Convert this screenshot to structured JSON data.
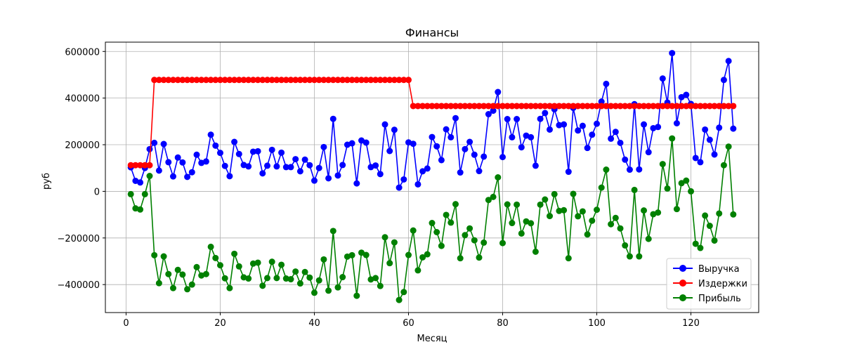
{
  "chart_data": {
    "type": "line",
    "title": "Финансы",
    "xlabel": "Месяц",
    "ylabel": "руб",
    "xlim": [
      -4.4,
      134.4
    ],
    "ylim": [
      -520000,
      640000
    ],
    "xticks": [
      0,
      20,
      40,
      60,
      80,
      100,
      120
    ],
    "yticks": [
      -400000,
      -200000,
      0,
      200000,
      400000,
      600000
    ],
    "grid": true,
    "legend_position": "lower-right",
    "x": [
      1,
      2,
      3,
      4,
      5,
      6,
      7,
      8,
      9,
      10,
      11,
      12,
      13,
      14,
      15,
      16,
      17,
      18,
      19,
      20,
      21,
      22,
      23,
      24,
      25,
      26,
      27,
      28,
      29,
      30,
      31,
      32,
      33,
      34,
      35,
      36,
      37,
      38,
      39,
      40,
      41,
      42,
      43,
      44,
      45,
      46,
      47,
      48,
      49,
      50,
      51,
      52,
      53,
      54,
      55,
      56,
      57,
      58,
      59,
      60,
      61,
      62,
      63,
      64,
      65,
      66,
      67,
      68,
      69,
      70,
      71,
      72,
      73,
      74,
      75,
      76,
      77,
      78,
      79,
      80,
      81,
      82,
      83,
      84,
      85,
      86,
      87,
      88,
      89,
      90,
      91,
      92,
      93,
      94,
      95,
      96,
      97,
      98,
      99,
      100,
      101,
      102,
      103,
      104,
      105,
      106,
      107,
      108,
      109,
      110,
      111,
      112,
      113,
      114,
      115,
      116,
      117,
      118,
      119,
      120,
      121,
      122,
      123,
      124,
      125,
      126,
      127,
      128,
      129
    ],
    "series": [
      {
        "name": "Выручка",
        "color": "#0000ff",
        "values": [
          103000,
          45000,
          38000,
          100000,
          181000,
          208000,
          89000,
          203000,
          125000,
          64000,
          145000,
          124000,
          62000,
          82000,
          157000,
          122000,
          128000,
          243000,
          196000,
          165000,
          109000,
          65000,
          212000,
          160000,
          113000,
          107000,
          170000,
          172000,
          77000,
          110000,
          178000,
          107000,
          166000,
          104000,
          104000,
          138000,
          86000,
          136000,
          112000,
          46000,
          100000,
          190000,
          56000,
          311000,
          68000,
          113000,
          200000,
          206000,
          34000,
          218000,
          209000,
          104000,
          111000,
          74000,
          287000,
          173000,
          264000,
          16000,
          51000,
          210000,
          204000,
          30000,
          86000,
          98000,
          233000,
          193000,
          134000,
          266000,
          232000,
          314000,
          81000,
          181000,
          212000,
          157000,
          87000,
          149000,
          331000,
          346000,
          426000,
          147000,
          310000,
          232000,
          310000,
          189000,
          239000,
          232000,
          110000,
          311000,
          336000,
          265000,
          352000,
          284000,
          287000,
          84000,
          358000,
          261000,
          281000,
          186000,
          243000,
          290000,
          385000,
          461000,
          226000,
          255000,
          208000,
          136000,
          93000,
          374000,
          94000,
          287000,
          168000,
          271000,
          276000,
          484000,
          381000,
          593000,
          292000,
          404000,
          414000,
          375000,
          143000,
          125000,
          265000,
          221000,
          158000,
          273000,
          478000,
          559000,
          269000
        ]
      },
      {
        "name": "Издержки",
        "color": "#ff0000",
        "values": [
          112000,
          112000,
          112000,
          112000,
          112000,
          478000,
          478000,
          478000,
          478000,
          478000,
          478000,
          478000,
          478000,
          478000,
          478000,
          478000,
          478000,
          478000,
          478000,
          478000,
          478000,
          478000,
          478000,
          478000,
          478000,
          478000,
          478000,
          478000,
          478000,
          478000,
          478000,
          478000,
          478000,
          478000,
          478000,
          478000,
          478000,
          478000,
          478000,
          478000,
          478000,
          478000,
          478000,
          478000,
          478000,
          478000,
          478000,
          478000,
          478000,
          478000,
          478000,
          478000,
          478000,
          478000,
          478000,
          478000,
          478000,
          478000,
          478000,
          478000,
          366000,
          366000,
          366000,
          366000,
          366000,
          366000,
          366000,
          366000,
          366000,
          366000,
          366000,
          366000,
          366000,
          366000,
          366000,
          366000,
          366000,
          366000,
          366000,
          366000,
          366000,
          366000,
          366000,
          366000,
          366000,
          366000,
          366000,
          366000,
          366000,
          366000,
          366000,
          366000,
          366000,
          366000,
          366000,
          366000,
          366000,
          366000,
          366000,
          366000,
          366000,
          366000,
          366000,
          366000,
          366000,
          366000,
          366000,
          366000,
          366000,
          366000,
          366000,
          366000,
          366000,
          366000,
          366000,
          366000,
          366000,
          366000,
          366000,
          366000,
          366000,
          366000,
          366000,
          366000,
          366000,
          366000,
          366000,
          366000,
          366000
        ]
      },
      {
        "name": "Прибыль",
        "color": "#008000",
        "values": [
          -12000,
          -73000,
          -78000,
          -12000,
          66000,
          -274000,
          -394000,
          -279000,
          -355000,
          -415000,
          -337000,
          -357000,
          -420000,
          -400000,
          -325000,
          -361000,
          -355000,
          -238000,
          -286000,
          -317000,
          -373000,
          -415000,
          -268000,
          -322000,
          -369000,
          -374000,
          -310000,
          -306000,
          -405000,
          -372000,
          -302000,
          -372000,
          -315000,
          -374000,
          -377000,
          -344000,
          -395000,
          -346000,
          -370000,
          -435000,
          -382000,
          -292000,
          -426000,
          -170000,
          -412000,
          -368000,
          -280000,
          -274000,
          -448000,
          -263000,
          -273000,
          -378000,
          -372000,
          -406000,
          -197000,
          -308000,
          -219000,
          -466000,
          -432000,
          -273000,
          -168000,
          -339000,
          -283000,
          -270000,
          -136000,
          -175000,
          -234000,
          -101000,
          -134000,
          -55000,
          -287000,
          -188000,
          -159000,
          -210000,
          -284000,
          -220000,
          -37000,
          -24000,
          60000,
          -222000,
          -56000,
          -136000,
          -57000,
          -181000,
          -129000,
          -137000,
          -259000,
          -57000,
          -35000,
          -106000,
          -12000,
          -84000,
          -81000,
          -287000,
          -11000,
          -107000,
          -86000,
          -185000,
          -126000,
          -79000,
          16000,
          93000,
          -141000,
          -114000,
          -159000,
          -232000,
          -279000,
          6000,
          -279000,
          -82000,
          -204000,
          -98000,
          -91000,
          117000,
          12000,
          227000,
          -76000,
          35000,
          46000,
          0,
          -225000,
          -243000,
          -104000,
          -148000,
          -211000,
          -95000,
          112000,
          192000,
          -99000
        ]
      }
    ]
  }
}
